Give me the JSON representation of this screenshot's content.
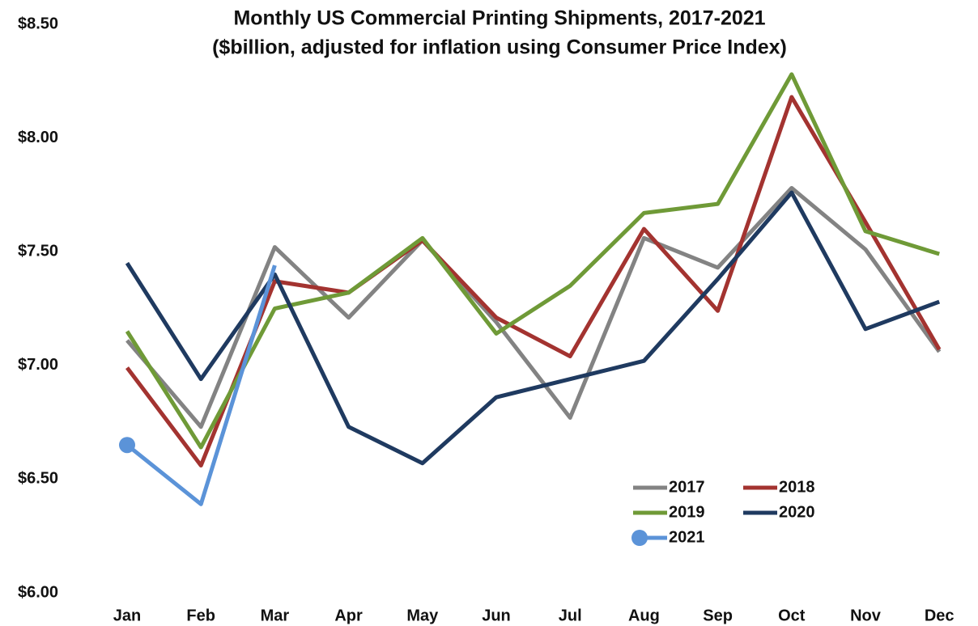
{
  "chart_data": {
    "type": "line",
    "title": "Monthly US Commercial Printing Shipments, 2017-2021",
    "subtitle": "($billion, adjusted for inflation using Consumer Price Index)",
    "categories": [
      "Jan",
      "Feb",
      "Mar",
      "Apr",
      "May",
      "Jun",
      "Jul",
      "Aug",
      "Sep",
      "Oct",
      "Nov",
      "Dec"
    ],
    "ylim": [
      6.0,
      8.5
    ],
    "yticks": [
      {
        "value": 6.0,
        "label": "$6.00"
      },
      {
        "value": 6.5,
        "label": "$6.50"
      },
      {
        "value": 7.0,
        "label": "$7.00"
      },
      {
        "value": 7.5,
        "label": "$7.50"
      },
      {
        "value": 8.0,
        "label": "$8.00"
      },
      {
        "value": 8.5,
        "label": "$8.50"
      }
    ],
    "grid": false,
    "series": [
      {
        "name": "2017",
        "color": "#838383",
        "values": [
          7.11,
          6.73,
          7.52,
          7.21,
          7.55,
          7.19,
          6.77,
          7.56,
          7.43,
          7.78,
          7.51,
          7.06
        ]
      },
      {
        "name": "2018",
        "color": "#a33330",
        "values": [
          6.99,
          6.56,
          7.37,
          7.32,
          7.55,
          7.21,
          7.04,
          7.6,
          7.24,
          8.18,
          7.63,
          7.07
        ]
      },
      {
        "name": "2019",
        "color": "#6f9a37",
        "values": [
          7.15,
          6.64,
          7.25,
          7.32,
          7.56,
          7.14,
          7.35,
          7.67,
          7.71,
          8.28,
          7.59,
          7.49
        ]
      },
      {
        "name": "2020",
        "color": "#1f3a60",
        "values": [
          7.45,
          6.94,
          7.4,
          6.73,
          6.57,
          6.86,
          6.94,
          7.02,
          7.38,
          7.76,
          7.16,
          7.28
        ]
      },
      {
        "name": "2021",
        "color": "#5b93d8",
        "values": [
          6.65,
          6.39,
          7.44,
          null,
          null,
          null,
          null,
          null,
          null,
          null,
          null,
          null
        ]
      }
    ]
  }
}
